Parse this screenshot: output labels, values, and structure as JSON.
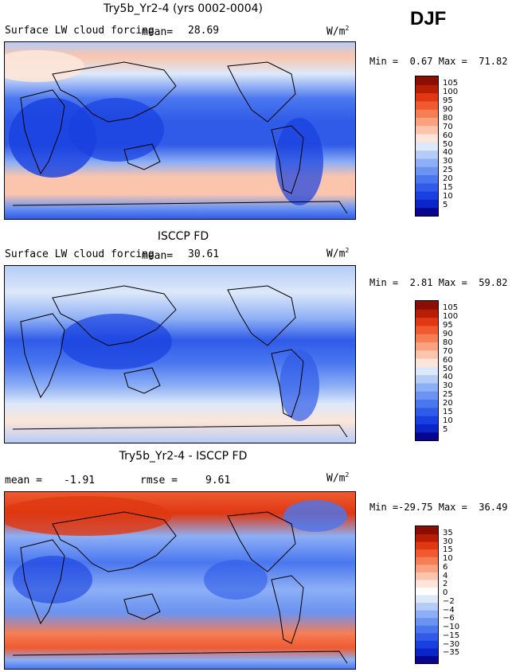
{
  "season": "DJF",
  "colors": {
    "levels_pos": [
      "#08058f",
      "#0a25c9",
      "#1840e0",
      "#2f5be8",
      "#4a77ef",
      "#6a93f2",
      "#8daff5",
      "#b5ccf7",
      "#dde8fa",
      "#fde5d9",
      "#fbc5ad",
      "#f9a27f",
      "#f57e55",
      "#ef5a30",
      "#df3812",
      "#b81d06",
      "#8a0f02"
    ],
    "levels_diff": [
      "#08058f",
      "#0a25c9",
      "#1840e0",
      "#2f5be8",
      "#4a77ef",
      "#6a93f2",
      "#8daff5",
      "#b5ccf7",
      "#dde8fa",
      "#ffffff",
      "#fde5d9",
      "#fbc5ad",
      "#f9a27f",
      "#f57e55",
      "#ef5a30",
      "#df3812",
      "#b81d06",
      "#8a0f02"
    ]
  },
  "panels": [
    {
      "title": "Try5b_Yr2-4 (yrs 0002-0004)",
      "subtitle": "Surface LW cloud forcing",
      "mean_label": "mean=",
      "mean_value": "28.69",
      "units": "W/m",
      "units_exp": "2",
      "min_label": "Min =",
      "min_value": "0.67",
      "max_label": "Max =",
      "max_value": "71.82"
    },
    {
      "title": "ISCCP FD",
      "subtitle": "Surface LW cloud forcing",
      "mean_label": "mean=",
      "mean_value": "30.61",
      "units": "W/m",
      "units_exp": "2",
      "min_label": "Min =",
      "min_value": "2.81",
      "max_label": "Max =",
      "max_value": "59.82"
    },
    {
      "title": "Try5b_Yr2-4 - ISCCP FD",
      "mean_label": "mean =",
      "mean_value": "-1.91",
      "rmse_label": "rmse =",
      "rmse_value": "9.61",
      "units": "W/m",
      "units_exp": "2",
      "min_label": "Min =",
      "min_value": "-29.75",
      "max_label": "Max =",
      "max_value": "36.49"
    }
  ],
  "chart_data": [
    {
      "type": "heatmap",
      "title": "Try5b_Yr2-4 (yrs 0002-0004)",
      "variable": "Surface LW cloud forcing",
      "units": "W/m2",
      "mean": 28.69,
      "min": 0.67,
      "max": 71.82,
      "colorbar_levels": [
        "105",
        "100",
        "95",
        "90",
        "80",
        "70",
        "60",
        "50",
        "40",
        "30",
        "25",
        "20",
        "15",
        "10",
        "5"
      ]
    },
    {
      "type": "heatmap",
      "title": "ISCCP FD",
      "variable": "Surface LW cloud forcing",
      "units": "W/m2",
      "mean": 30.61,
      "min": 2.81,
      "max": 59.82,
      "colorbar_levels": [
        "105",
        "100",
        "95",
        "90",
        "80",
        "70",
        "60",
        "50",
        "40",
        "30",
        "25",
        "20",
        "15",
        "10",
        "5"
      ]
    },
    {
      "type": "heatmap",
      "title": "Try5b_Yr2-4 - ISCCP FD",
      "units": "W/m2",
      "mean": -1.91,
      "rmse": 9.61,
      "min": -29.75,
      "max": 36.49,
      "colorbar_levels": [
        "35",
        "30",
        "15",
        "10",
        "6",
        "4",
        "2",
        "0",
        "−2",
        "−4",
        "−6",
        "−10",
        "−15",
        "−30",
        "−35"
      ]
    }
  ]
}
